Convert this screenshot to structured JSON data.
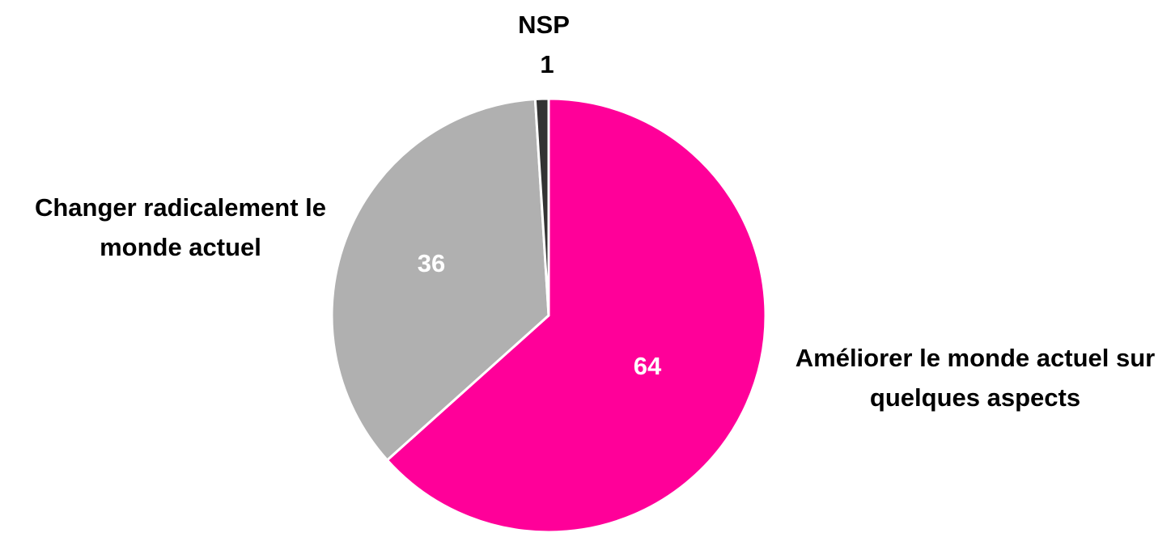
{
  "chart_data": {
    "type": "pie",
    "categories": [
      "Améliorer le monde actuel sur quelques aspects",
      "Changer radicalement le monde actuel",
      "NSP"
    ],
    "values": [
      64,
      36,
      1
    ],
    "colors": [
      "#ff0099",
      "#b0b0b0",
      "#333333"
    ]
  }
}
